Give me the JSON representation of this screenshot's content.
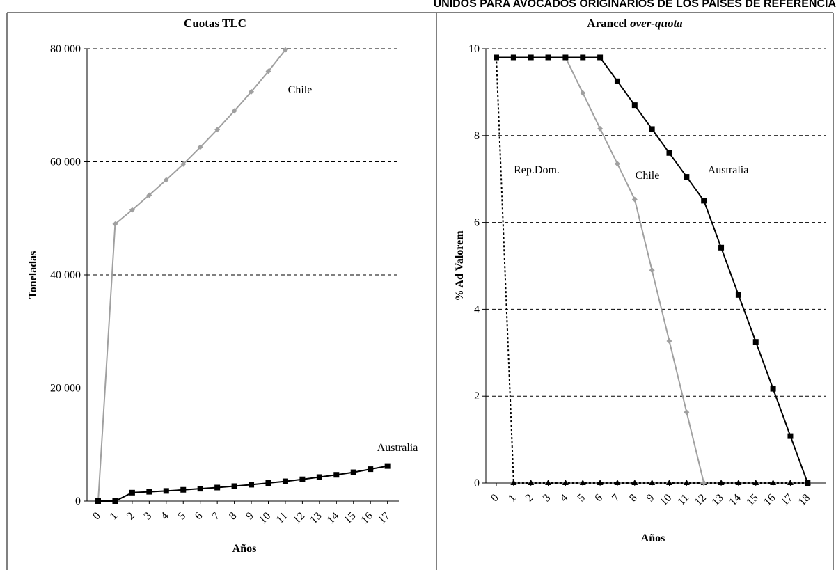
{
  "page": {
    "heading": "UNIDOS PARA AVOCADOS ORIGINARIOS DE LOS PAISES DE REFERENCIA"
  },
  "chart_data": [
    {
      "type": "line",
      "title": "Cuotas TLC",
      "xlabel": "Años",
      "ylabel": "Toneladas",
      "categories": [
        "0",
        "1",
        "2",
        "3",
        "4",
        "5",
        "6",
        "7",
        "8",
        "9",
        "10",
        "11",
        "12",
        "13",
        "14",
        "15",
        "16",
        "17"
      ],
      "yticks": [
        "0",
        "20 000",
        "40 000",
        "60 000",
        "80 000"
      ],
      "ylim": [
        0,
        80000
      ],
      "grid": true,
      "colors": {
        "Chile": "#a0a0a0",
        "Australia": "#000000"
      },
      "series": [
        {
          "name": "Chile",
          "x": [
            0,
            1,
            2,
            3,
            4,
            5,
            6,
            7,
            8,
            9,
            10,
            11
          ],
          "values": [
            0,
            49000,
            51500,
            54100,
            56800,
            59600,
            62600,
            65700,
            69000,
            72400,
            76000,
            79800
          ]
        },
        {
          "name": "Australia",
          "x": [
            0,
            1,
            2,
            3,
            4,
            5,
            6,
            7,
            8,
            9,
            10,
            11,
            12,
            13,
            14,
            15,
            16,
            17
          ],
          "values": [
            0,
            0,
            1500,
            1650,
            1800,
            2000,
            2200,
            2400,
            2650,
            2900,
            3200,
            3500,
            3850,
            4250,
            4650,
            5100,
            5650,
            6200
          ]
        }
      ]
    },
    {
      "type": "line",
      "title_prefix": "Arancel ",
      "title_emph": "over-quota",
      "xlabel": "Años",
      "ylabel": "% Ad Valorem",
      "categories": [
        "0",
        "1",
        "2",
        "3",
        "4",
        "5",
        "6",
        "7",
        "8",
        "9",
        "10",
        "11",
        "12",
        "13",
        "14",
        "15",
        "16",
        "17",
        "18"
      ],
      "yticks": [
        "0",
        "2",
        "4",
        "6",
        "8",
        "10"
      ],
      "ylim": [
        0,
        10
      ],
      "grid": true,
      "colors": {
        "Rep.Dom.": "#000000",
        "Chile": "#a0a0a0",
        "Australia": "#000000"
      },
      "series": [
        {
          "name": "Rep.Dom.",
          "x": [
            0,
            1,
            2,
            3,
            4,
            5,
            6,
            7,
            8,
            9,
            10,
            11,
            12,
            13,
            14,
            15,
            16,
            17,
            18
          ],
          "values": [
            9.8,
            0,
            0,
            0,
            0,
            0,
            0,
            0,
            0,
            0,
            0,
            0,
            0,
            0,
            0,
            0,
            0,
            0,
            0
          ]
        },
        {
          "name": "Chile",
          "x": [
            4,
            5,
            6,
            7,
            8,
            9,
            10,
            11,
            12
          ],
          "values": [
            9.8,
            8.98,
            8.16,
            7.35,
            6.53,
            4.9,
            3.27,
            1.63,
            0
          ]
        },
        {
          "name": "Australia",
          "x": [
            0,
            1,
            2,
            3,
            4,
            5,
            6,
            7,
            8,
            9,
            10,
            11,
            12,
            13,
            14,
            15,
            16,
            17,
            18
          ],
          "values": [
            9.8,
            9.8,
            9.8,
            9.8,
            9.8,
            9.8,
            9.8,
            9.25,
            8.7,
            8.15,
            7.6,
            7.05,
            6.5,
            5.42,
            4.33,
            3.25,
            2.17,
            1.08,
            0
          ]
        }
      ]
    }
  ]
}
